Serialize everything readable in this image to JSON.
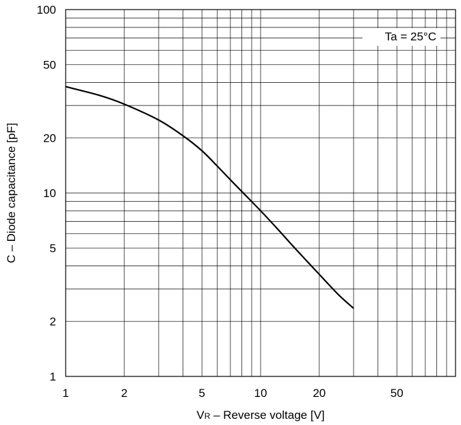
{
  "chart_data": {
    "type": "line",
    "title": "",
    "xlabel": {
      "main": "V",
      "sub": "R",
      "rest": " – Reverse voltage [V]"
    },
    "ylabel": "C – Diode capacitance [pF]",
    "xscale": "log",
    "yscale": "log",
    "xlim": [
      1,
      100
    ],
    "ylim": [
      1,
      100
    ],
    "grid": true,
    "x_tick_labels": [
      {
        "value": 1,
        "label": "1"
      },
      {
        "value": 2,
        "label": "2"
      },
      {
        "value": 5,
        "label": "5"
      },
      {
        "value": 10,
        "label": "10"
      },
      {
        "value": 20,
        "label": "20"
      },
      {
        "value": 50,
        "label": "50"
      }
    ],
    "y_tick_labels": [
      {
        "value": 1,
        "label": "1"
      },
      {
        "value": 2,
        "label": "2"
      },
      {
        "value": 5,
        "label": "5"
      },
      {
        "value": 10,
        "label": "10"
      },
      {
        "value": 20,
        "label": "20"
      },
      {
        "value": 50,
        "label": "50"
      },
      {
        "value": 100,
        "label": "100"
      }
    ],
    "annotation": "Ta = 25°C",
    "series": [
      {
        "points": [
          [
            1,
            38
          ],
          [
            1.5,
            34
          ],
          [
            2,
            30.5
          ],
          [
            3,
            25
          ],
          [
            4,
            20.5
          ],
          [
            5,
            17
          ],
          [
            6,
            14
          ],
          [
            7,
            11.8
          ],
          [
            8,
            10.2
          ],
          [
            10,
            8
          ],
          [
            12,
            6.5
          ],
          [
            15,
            5
          ],
          [
            20,
            3.6
          ],
          [
            25,
            2.8
          ],
          [
            30,
            2.35
          ]
        ]
      }
    ]
  }
}
